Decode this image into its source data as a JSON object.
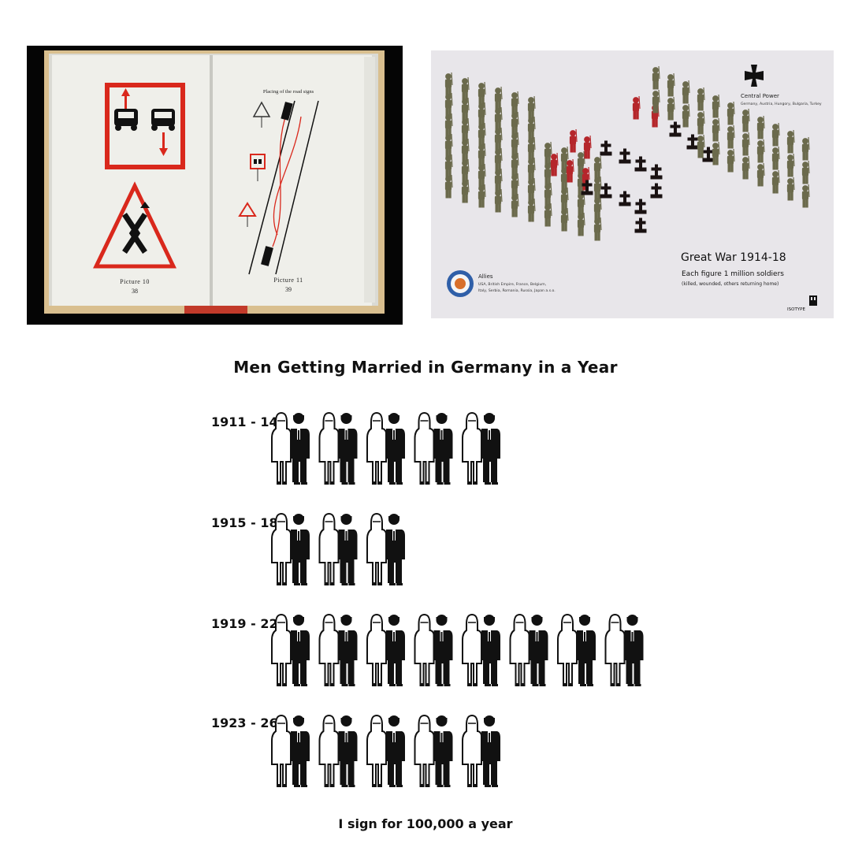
{
  "book": {
    "left_page": {
      "caption": "Picture 10",
      "page_number": "38"
    },
    "right_page": {
      "heading": "Placing of the road signs",
      "caption": "Picture 11",
      "page_number": "39"
    },
    "colors": {
      "red": "#d9281c",
      "paper": "#efefea",
      "cover": "#e0c79c"
    }
  },
  "poster": {
    "central": {
      "title": "Central Power",
      "members": "Germany, Austria, Hungory, Bulgaria, Turkey",
      "icon": "iron-cross-icon"
    },
    "title": "Great War 1914-18",
    "subtitle": "Each figure 1 million soldiers",
    "note": "(killed,  wounded,  others returning home)",
    "allies": {
      "title": "Allies",
      "members_line1": "USA, British Empire, France, Belgium,",
      "members_line2": "Italy, Serbia, Romania, Russia, Japan a.s.o.",
      "icon": "roundel-icon"
    },
    "brand": "ISOTYPE",
    "colors": {
      "soldier": "#6b6a4c",
      "wounded": "#b5262b",
      "grave": "#1a1212",
      "background": "#e8e6ea"
    }
  },
  "chart_data": {
    "type": "pictogram",
    "title": "Men Getting Married in Germany in a Year",
    "categories": [
      "1911 - 14",
      "1915 - 18",
      "1919 - 22",
      "1923 - 26"
    ],
    "series": [
      {
        "values": [
          5,
          3,
          8,
          5
        ]
      }
    ],
    "footer": "I sign for 100,000 a year",
    "icon": "couple-icon"
  }
}
